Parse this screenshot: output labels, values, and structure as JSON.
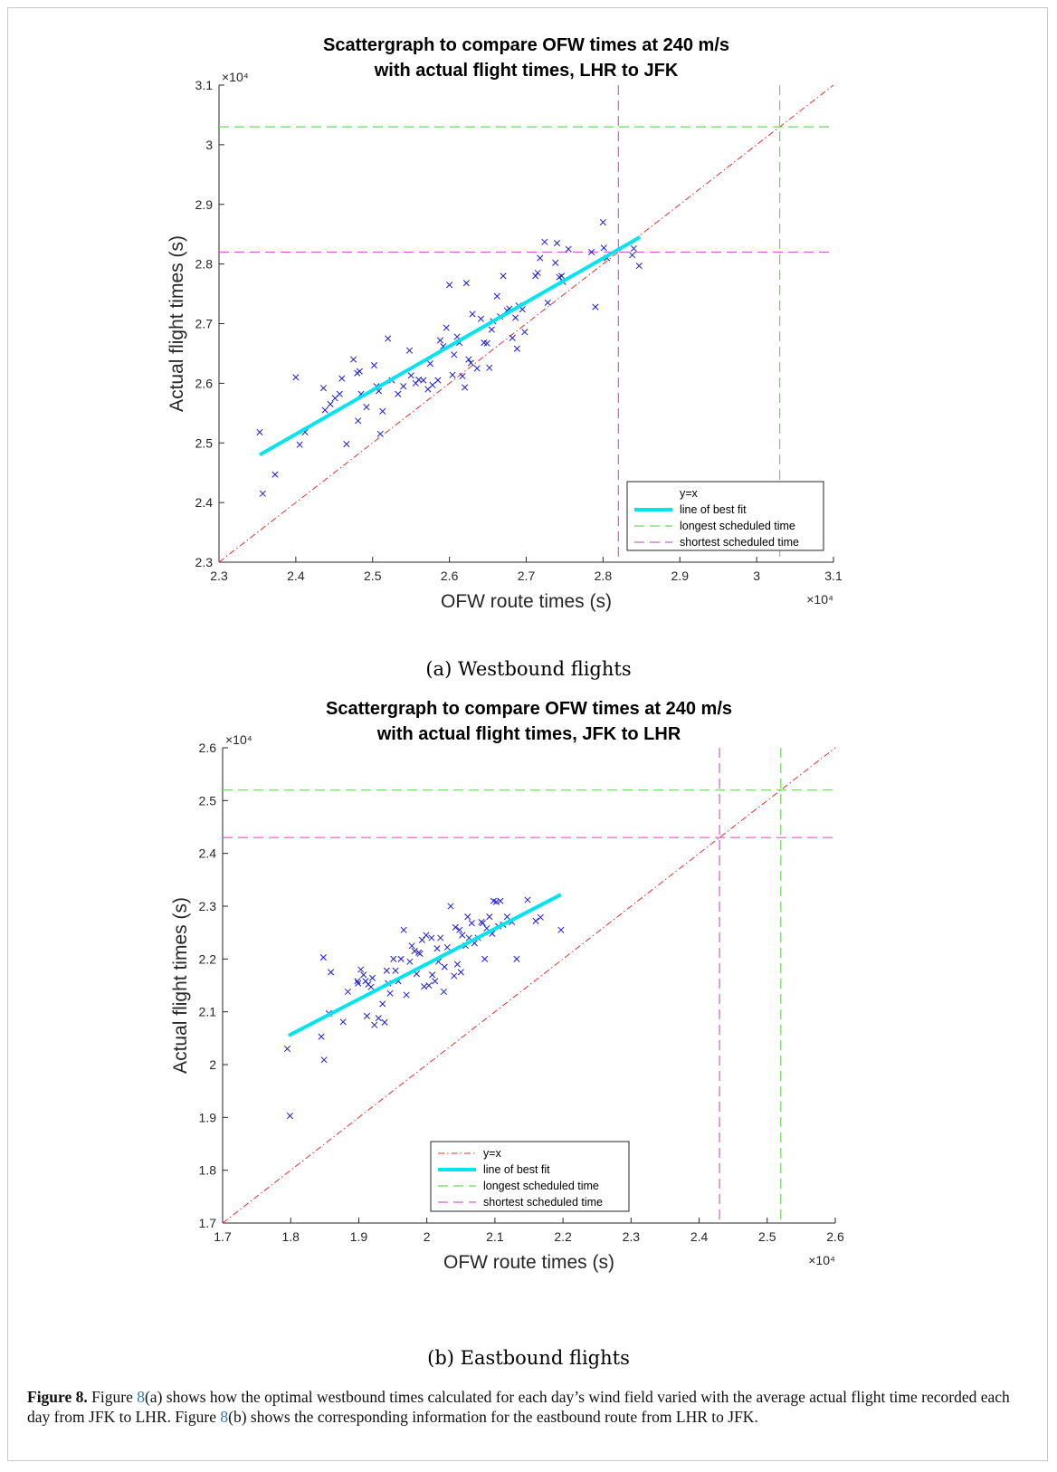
{
  "figure": {
    "subcaption_a": "(a) Westbound flights",
    "subcaption_b": "(b) Eastbound flights",
    "caption_label": "Figure 8.",
    "caption_parts": [
      " Figure ",
      "8",
      "(a) shows how the optimal westbound times calculated for each day’s wind field varied with the average actual flight time recorded each day from JFK to LHR. Figure ",
      "8",
      "(b) shows the corresponding information for the eastbound route from LHR to JFK."
    ]
  },
  "colors": {
    "points": "#1a1adf",
    "fit": "#00e5ee",
    "identity": "#e8302a",
    "longest": "#66dd55",
    "shortest": "#e055d8"
  },
  "chart_data": [
    {
      "type": "scatter",
      "title_lines": [
        "Scattergraph to compare OFW times at 240 m/s",
        "with actual flight times, LHR to JFK"
      ],
      "xlabel": "OFW route times (s)",
      "ylabel": "Actual flight times (s)",
      "x_multiplier": "×10⁴",
      "y_multiplier": "×10⁴",
      "xlim": [
        2.3,
        3.1
      ],
      "ylim": [
        2.3,
        3.1
      ],
      "xticks": [
        "2.3",
        "2.4",
        "2.5",
        "2.6",
        "2.7",
        "2.8",
        "2.9",
        "3",
        "3.1"
      ],
      "yticks": [
        "2.3",
        "2.4",
        "2.5",
        "2.6",
        "2.7",
        "2.8",
        "2.9",
        "3",
        "3.1"
      ],
      "grid": false,
      "legend_position": "bottom-right",
      "legend": [
        "y=x",
        "line of best fit",
        "longest scheduled time",
        "shortest scheduled time"
      ],
      "identity_line_drawn_in_legend": false,
      "best_fit": {
        "x": [
          2.353,
          2.848
        ],
        "y": [
          2.48,
          2.845
        ]
      },
      "longest_scheduled_time": 3.03,
      "shortest_scheduled_time": 2.82,
      "points": [
        [
          2.353,
          2.518
        ],
        [
          2.357,
          2.415
        ],
        [
          2.373,
          2.447
        ],
        [
          2.4,
          2.61
        ],
        [
          2.405,
          2.497
        ],
        [
          2.412,
          2.518
        ],
        [
          2.436,
          2.592
        ],
        [
          2.438,
          2.555
        ],
        [
          2.445,
          2.565
        ],
        [
          2.451,
          2.575
        ],
        [
          2.457,
          2.582
        ],
        [
          2.46,
          2.608
        ],
        [
          2.466,
          2.498
        ],
        [
          2.475,
          2.64
        ],
        [
          2.48,
          2.617
        ],
        [
          2.481,
          2.537
        ],
        [
          2.483,
          2.62
        ],
        [
          2.485,
          2.582
        ],
        [
          2.492,
          2.56
        ],
        [
          2.502,
          2.63
        ],
        [
          2.505,
          2.595
        ],
        [
          2.508,
          2.587
        ],
        [
          2.51,
          2.515
        ],
        [
          2.513,
          2.553
        ],
        [
          2.52,
          2.675
        ],
        [
          2.525,
          2.605
        ],
        [
          2.533,
          2.582
        ],
        [
          2.54,
          2.595
        ],
        [
          2.548,
          2.655
        ],
        [
          2.55,
          2.613
        ],
        [
          2.556,
          2.6
        ],
        [
          2.56,
          2.606
        ],
        [
          2.566,
          2.605
        ],
        [
          2.572,
          2.59
        ],
        [
          2.575,
          2.633
        ],
        [
          2.578,
          2.597
        ],
        [
          2.585,
          2.605
        ],
        [
          2.588,
          2.672
        ],
        [
          2.592,
          2.662
        ],
        [
          2.596,
          2.693
        ],
        [
          2.6,
          2.765
        ],
        [
          2.604,
          2.614
        ],
        [
          2.606,
          2.648
        ],
        [
          2.61,
          2.678
        ],
        [
          2.613,
          2.668
        ],
        [
          2.617,
          2.612
        ],
        [
          2.62,
          2.593
        ],
        [
          2.622,
          2.768
        ],
        [
          2.625,
          2.64
        ],
        [
          2.628,
          2.634
        ],
        [
          2.63,
          2.716
        ],
        [
          2.636,
          2.625
        ],
        [
          2.641,
          2.708
        ],
        [
          2.645,
          2.668
        ],
        [
          2.649,
          2.667
        ],
        [
          2.652,
          2.626
        ],
        [
          2.655,
          2.69
        ],
        [
          2.657,
          2.704
        ],
        [
          2.662,
          2.746
        ],
        [
          2.666,
          2.712
        ],
        [
          2.67,
          2.78
        ],
        [
          2.675,
          2.722
        ],
        [
          2.678,
          2.725
        ],
        [
          2.682,
          2.676
        ],
        [
          2.686,
          2.71
        ],
        [
          2.688,
          2.658
        ],
        [
          2.69,
          2.73
        ],
        [
          2.695,
          2.724
        ],
        [
          2.698,
          2.686
        ],
        [
          2.712,
          2.78
        ],
        [
          2.715,
          2.785
        ],
        [
          2.718,
          2.81
        ],
        [
          2.724,
          2.837
        ],
        [
          2.728,
          2.735
        ],
        [
          2.738,
          2.802
        ],
        [
          2.74,
          2.835
        ],
        [
          2.743,
          2.778
        ],
        [
          2.746,
          2.78
        ],
        [
          2.748,
          2.77
        ],
        [
          2.755,
          2.825
        ],
        [
          2.785,
          2.82
        ],
        [
          2.79,
          2.728
        ],
        [
          2.8,
          2.87
        ],
        [
          2.801,
          2.827
        ],
        [
          2.805,
          2.81
        ],
        [
          2.838,
          2.815
        ],
        [
          2.84,
          2.826
        ],
        [
          2.847,
          2.797
        ]
      ]
    },
    {
      "type": "scatter",
      "title_lines": [
        "Scattergraph to compare OFW times at 240 m/s",
        "with actual flight times, JFK to LHR"
      ],
      "xlabel": "OFW route times (s)",
      "ylabel": "Actual flight times (s)",
      "x_multiplier": "×10⁴",
      "y_multiplier": "×10⁴",
      "xlim": [
        1.7,
        2.6
      ],
      "ylim": [
        1.7,
        2.6
      ],
      "xticks": [
        "1.7",
        "1.8",
        "1.9",
        "2",
        "2.1",
        "2.2",
        "2.3",
        "2.4",
        "2.5",
        "2.6"
      ],
      "yticks": [
        "1.7",
        "1.8",
        "1.9",
        "2",
        "2.1",
        "2.2",
        "2.3",
        "2.4",
        "2.5",
        "2.6"
      ],
      "grid": false,
      "legend_position": "bottom-center",
      "legend": [
        "y=x",
        "line of best fit",
        "longest scheduled time",
        "shortest scheduled time"
      ],
      "identity_line_drawn_in_legend": true,
      "best_fit": {
        "x": [
          1.797,
          2.197
        ],
        "y": [
          2.055,
          2.322
        ]
      },
      "longest_scheduled_time": 2.52,
      "shortest_scheduled_time": 2.43,
      "points": [
        [
          1.795,
          2.03
        ],
        [
          1.799,
          1.903
        ],
        [
          1.845,
          2.053
        ],
        [
          1.848,
          2.203
        ],
        [
          1.849,
          2.009
        ],
        [
          1.856,
          2.097
        ],
        [
          1.859,
          2.175
        ],
        [
          1.877,
          2.081
        ],
        [
          1.884,
          2.138
        ],
        [
          1.898,
          2.158
        ],
        [
          1.899,
          2.154
        ],
        [
          1.903,
          2.18
        ],
        [
          1.907,
          2.17
        ],
        [
          1.91,
          2.158
        ],
        [
          1.912,
          2.092
        ],
        [
          1.914,
          2.152
        ],
        [
          1.918,
          2.147
        ],
        [
          1.92,
          2.164
        ],
        [
          1.923,
          2.075
        ],
        [
          1.929,
          2.088
        ],
        [
          1.935,
          2.115
        ],
        [
          1.938,
          2.08
        ],
        [
          1.941,
          2.178
        ],
        [
          1.943,
          2.154
        ],
        [
          1.946,
          2.135
        ],
        [
          1.951,
          2.2
        ],
        [
          1.954,
          2.178
        ],
        [
          1.958,
          2.158
        ],
        [
          1.962,
          2.2
        ],
        [
          1.966,
          2.255
        ],
        [
          1.97,
          2.132
        ],
        [
          1.975,
          2.195
        ],
        [
          1.978,
          2.225
        ],
        [
          1.982,
          2.215
        ],
        [
          1.985,
          2.172
        ],
        [
          1.988,
          2.212
        ],
        [
          1.99,
          2.21
        ],
        [
          1.993,
          2.236
        ],
        [
          1.996,
          2.148
        ],
        [
          1.999,
          2.245
        ],
        [
          2.003,
          2.15
        ],
        [
          2.007,
          2.24
        ],
        [
          2.008,
          2.17
        ],
        [
          2.012,
          2.158
        ],
        [
          2.015,
          2.22
        ],
        [
          2.017,
          2.195
        ],
        [
          2.02,
          2.24
        ],
        [
          2.025,
          2.138
        ],
        [
          2.026,
          2.185
        ],
        [
          2.03,
          2.222
        ],
        [
          2.035,
          2.3
        ],
        [
          2.04,
          2.168
        ],
        [
          2.042,
          2.26
        ],
        [
          2.045,
          2.19
        ],
        [
          2.048,
          2.255
        ],
        [
          2.05,
          2.175
        ],
        [
          2.052,
          2.245
        ],
        [
          2.057,
          2.225
        ],
        [
          2.06,
          2.28
        ],
        [
          2.062,
          2.24
        ],
        [
          2.066,
          2.268
        ],
        [
          2.07,
          2.23
        ],
        [
          2.075,
          2.24
        ],
        [
          2.08,
          2.27
        ],
        [
          2.082,
          2.268
        ],
        [
          2.085,
          2.2
        ],
        [
          2.088,
          2.258
        ],
        [
          2.092,
          2.28
        ],
        [
          2.096,
          2.248
        ],
        [
          2.098,
          2.31
        ],
        [
          2.102,
          2.308
        ],
        [
          2.105,
          2.262
        ],
        [
          2.108,
          2.31
        ],
        [
          2.112,
          2.265
        ],
        [
          2.118,
          2.28
        ],
        [
          2.125,
          2.27
        ],
        [
          2.132,
          2.2
        ],
        [
          2.148,
          2.312
        ],
        [
          2.16,
          2.272
        ],
        [
          2.167,
          2.279
        ],
        [
          2.197,
          2.255
        ]
      ]
    }
  ]
}
